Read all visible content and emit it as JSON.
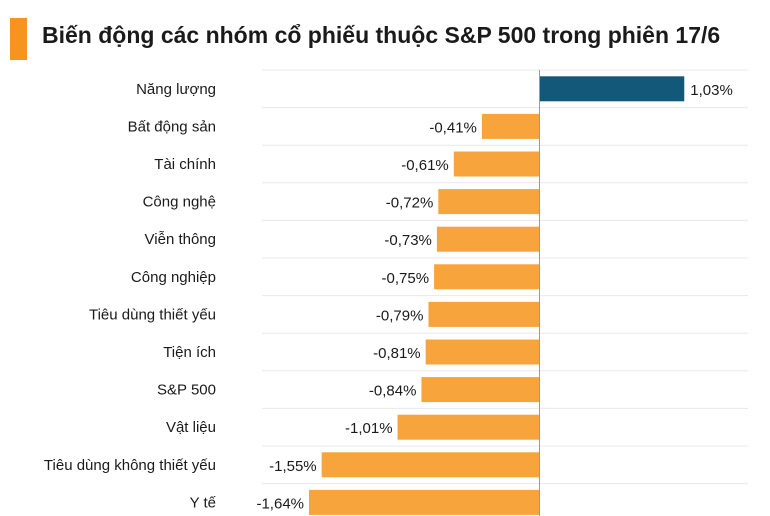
{
  "header": {
    "title": "Biến động các nhóm cổ phiếu thuộc S&P 500 trong phiên 17/6",
    "accent_color": "#f7941d"
  },
  "chart_data": {
    "type": "bar",
    "orientation": "horizontal",
    "title": "Biến động các nhóm cổ phiếu thuộc S&P 500 trong phiên 17/6",
    "xlabel": "",
    "ylabel": "",
    "unit": "%",
    "grid": true,
    "xlim": [
      -1.64,
      1.03
    ],
    "positive_color": "#125878",
    "negative_color": "#f7a43c",
    "categories": [
      "Năng lượng",
      "Bất động sản",
      "Tài chính",
      "Công nghệ",
      "Viễn thông",
      "Công nghiệp",
      "Tiêu dùng thiết yếu",
      "Tiện ích",
      "S&P 500",
      "Vật liệu",
      "Tiêu dùng không thiết yếu",
      "Y tế"
    ],
    "values": [
      1.03,
      -0.41,
      -0.61,
      -0.72,
      -0.73,
      -0.75,
      -0.79,
      -0.81,
      -0.84,
      -1.01,
      -1.55,
      -1.64
    ],
    "value_labels": [
      "1,03%",
      "-0,41%",
      "-0,61%",
      "-0,72%",
      "-0,73%",
      "-0,75%",
      "-0,79%",
      "-0,81%",
      "-0,84%",
      "-1,01%",
      "-1,55%",
      "-1,64%"
    ]
  }
}
